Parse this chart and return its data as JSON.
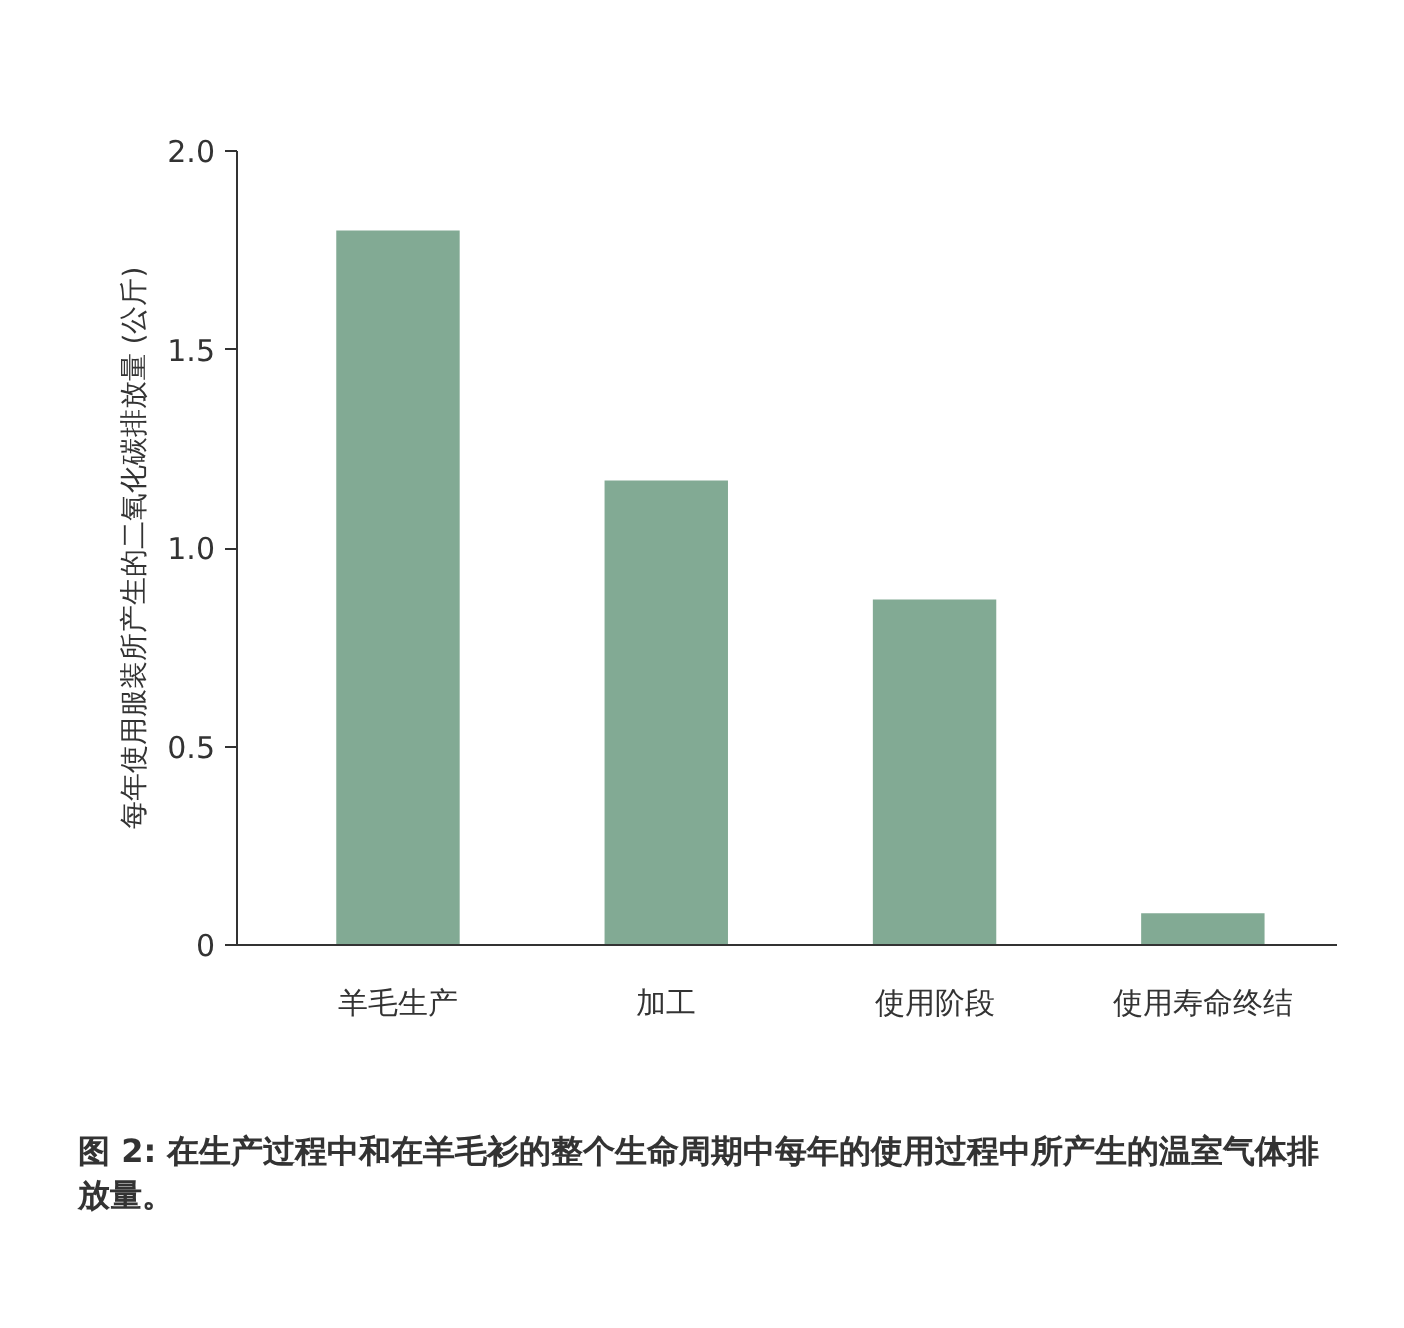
{
  "chart_data": {
    "type": "bar",
    "categories": [
      "羊毛生产",
      "加工",
      "使用阶段",
      "使用寿命终结"
    ],
    "values": [
      1.8,
      1.17,
      0.87,
      0.08
    ],
    "color": "#82aa94",
    "ylabel": "每年使用服装所产生的二氧化碳排放量 (公斤)",
    "ylim": [
      0,
      2.0
    ],
    "yticks": [
      0,
      0.5,
      {
        "value": 1,
        "label": "1.0"
      },
      1.5,
      {
        "value": 2,
        "label": "2.0"
      }
    ],
    "grid": false,
    "annotations": [
      "图 2: 在生产过程中和在羊毛衫的整个生命周期中每年的使用过程中所产生的温室气体排放量。"
    ]
  }
}
